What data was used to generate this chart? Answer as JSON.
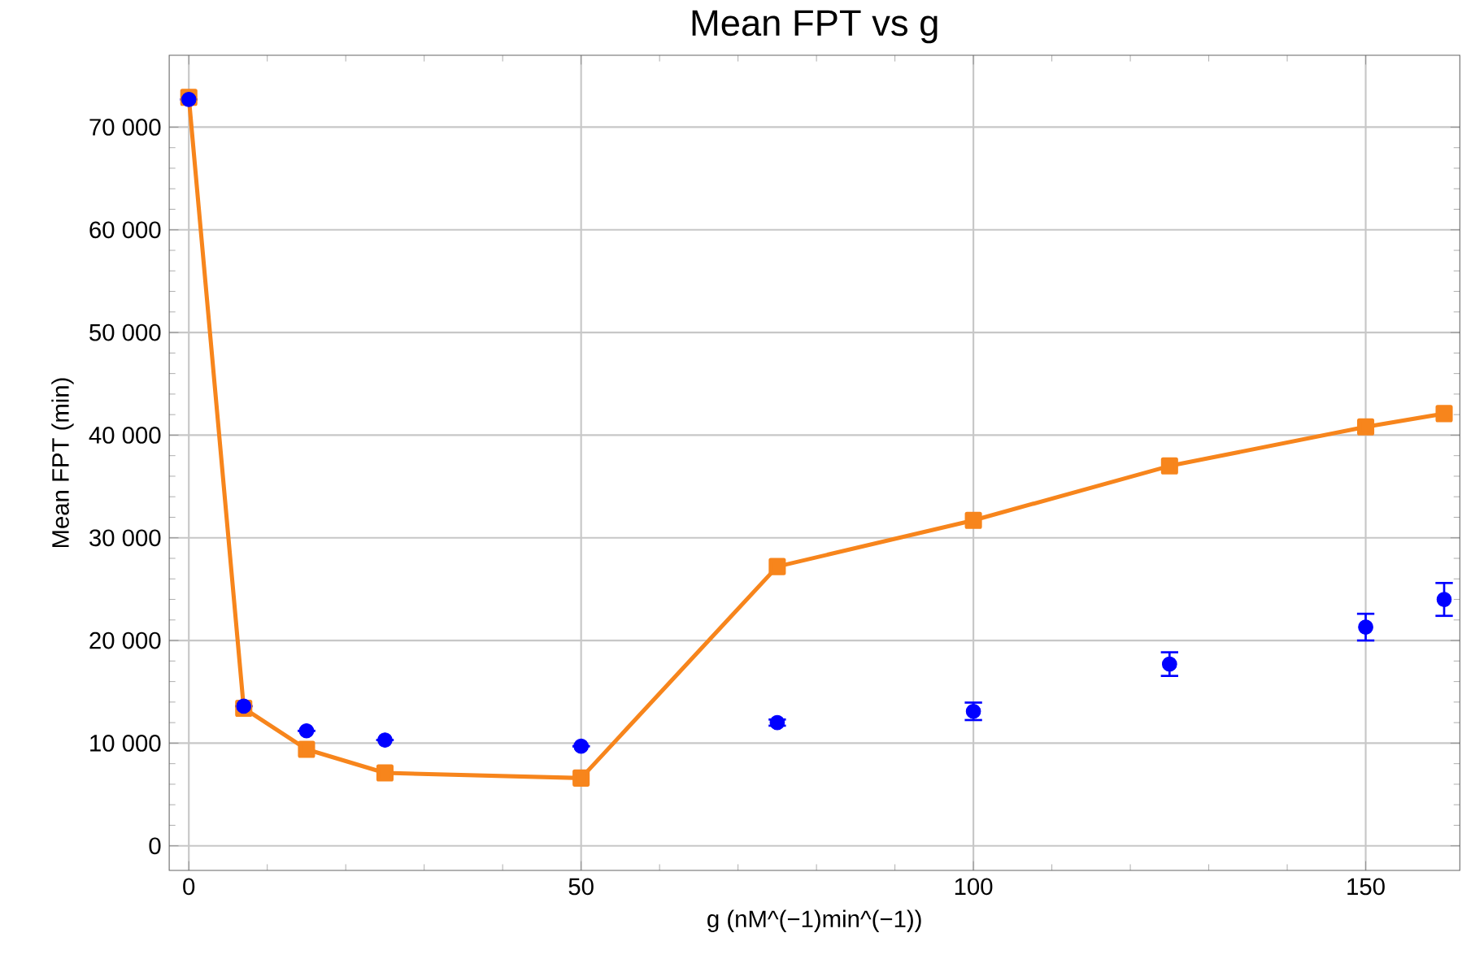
{
  "chart_data": {
    "type": "line",
    "title": "Mean FPT vs g",
    "xlabel": "g (nM^(−1)min^(−1))",
    "ylabel": "Mean FPT (min)",
    "xlim": [
      -2.5,
      162
    ],
    "ylim": [
      -2400,
      77000
    ],
    "xticks": [
      0,
      50,
      100,
      150
    ],
    "yticks": [
      {
        "value": 0,
        "label": "0"
      },
      {
        "value": 10000,
        "label": "10 000"
      },
      {
        "value": 20000,
        "label": "20 000"
      },
      {
        "value": 30000,
        "label": "30 000"
      },
      {
        "value": 40000,
        "label": "40 000"
      },
      {
        "value": 50000,
        "label": "50 000"
      },
      {
        "value": 60000,
        "label": "60 000"
      },
      {
        "value": 70000,
        "label": "70 000"
      }
    ],
    "grid": true,
    "series": [
      {
        "color": "#f7851c",
        "marker": "square",
        "line_style": "solid",
        "x": [
          0,
          7,
          15,
          25,
          50,
          75,
          100,
          125,
          150,
          160
        ],
        "values": [
          72900,
          13400,
          9400,
          7100,
          6600,
          27200,
          31700,
          37000,
          40800,
          42100
        ]
      },
      {
        "type": "scatter",
        "color": "#0000ff",
        "marker": "circle",
        "x": [
          0,
          7,
          15,
          25,
          50,
          75,
          100,
          125,
          150,
          160
        ],
        "values": [
          72700,
          13600,
          11200,
          10300,
          9700,
          12000,
          13100,
          17700,
          21300,
          24000
        ],
        "errors": [
          null,
          null,
          null,
          null,
          null,
          300,
          850,
          1150,
          1300,
          1600
        ]
      }
    ]
  }
}
